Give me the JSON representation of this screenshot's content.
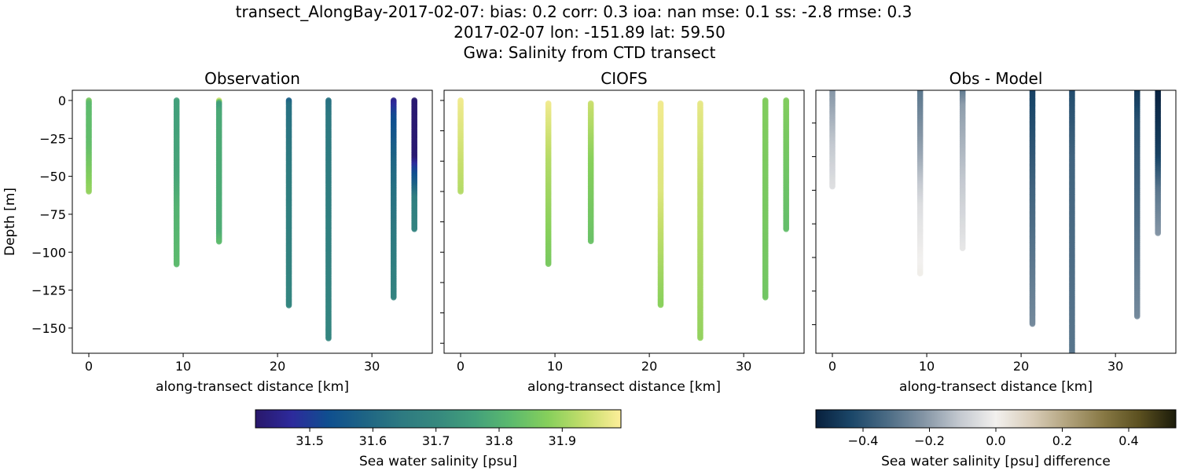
{
  "figure": {
    "title_lines": [
      "transect_AlongBay-2017-02-07: bias: 0.2  corr: 0.3  ioa: nan  mse: 0.1  ss: -2.8  rmse: 0.3",
      "2017-02-07 lon: -151.89 lat: 59.50",
      "Gwa: Salinity from CTD transect"
    ]
  },
  "chart_data": [
    {
      "type": "scatter",
      "title": "Observation",
      "xlabel": "along-transect distance [km]",
      "ylabel": "Depth [m]",
      "xlim": [
        -1.75,
        36.4
      ],
      "ylim": [
        -166.6,
        6.7
      ],
      "xticks": [
        0,
        10,
        20,
        30
      ],
      "yticks": [
        0,
        -25,
        -50,
        -75,
        -100,
        -125,
        -150
      ],
      "ytick_labels": [
        "0",
        "−25",
        "−50",
        "−75",
        "−100",
        "−125",
        "−150"
      ],
      "colormap": "haline",
      "casts": [
        {
          "distance_km": 0,
          "profile": [
            [
              0,
              31.86
            ],
            [
              2,
              31.82
            ],
            [
              30,
              31.83
            ],
            [
              60,
              31.89
            ]
          ]
        },
        {
          "distance_km": 9.3,
          "profile": [
            [
              0,
              31.76
            ],
            [
              50,
              31.77
            ],
            [
              70,
              31.8
            ],
            [
              108,
              31.82
            ]
          ]
        },
        {
          "distance_km": 13.8,
          "profile": [
            [
              0,
              31.95
            ],
            [
              2,
              31.75
            ],
            [
              8,
              31.78
            ],
            [
              88,
              31.79
            ],
            [
              93,
              31.82
            ]
          ]
        },
        {
          "distance_km": 21.2,
          "profile": [
            [
              0,
              31.57
            ],
            [
              3,
              31.62
            ],
            [
              60,
              31.66
            ],
            [
              135,
              31.69
            ]
          ]
        },
        {
          "distance_km": 25.4,
          "profile": [
            [
              0,
              31.62
            ],
            [
              10,
              31.64
            ],
            [
              157,
              31.69
            ]
          ]
        },
        {
          "distance_km": 32.3,
          "profile": [
            [
              0,
              31.45
            ],
            [
              10,
              31.52
            ],
            [
              40,
              31.59
            ],
            [
              60,
              31.62
            ],
            [
              130,
              31.68
            ]
          ]
        },
        {
          "distance_km": 34.5,
          "profile": [
            [
              0,
              31.42
            ],
            [
              38,
              31.42
            ],
            [
              45,
              31.5
            ],
            [
              55,
              31.57
            ],
            [
              65,
              31.66
            ],
            [
              85,
              31.68
            ]
          ]
        }
      ]
    },
    {
      "type": "scatter",
      "title": "CIOFS",
      "xlabel": "along-transect distance [km]",
      "xlim": [
        -1.75,
        36.4
      ],
      "ylim": [
        -166.6,
        6.7
      ],
      "xticks": [
        0,
        10,
        20,
        30
      ],
      "yticks": [
        0,
        -20,
        -40,
        -60,
        -80,
        -100,
        -120,
        -140,
        -160
      ],
      "colormap": "haline",
      "casts": [
        {
          "distance_km": 0,
          "profile": [
            [
              0,
              31.98
            ],
            [
              60,
              31.92
            ]
          ]
        },
        {
          "distance_km": 9.3,
          "profile": [
            [
              2,
              31.98
            ],
            [
              40,
              31.92
            ],
            [
              108,
              31.86
            ]
          ]
        },
        {
          "distance_km": 13.8,
          "profile": [
            [
              2,
              31.94
            ],
            [
              40,
              31.88
            ],
            [
              93,
              31.84
            ]
          ]
        },
        {
          "distance_km": 21.2,
          "profile": [
            [
              2,
              31.98
            ],
            [
              60,
              31.96
            ],
            [
              135,
              31.88
            ]
          ]
        },
        {
          "distance_km": 25.4,
          "profile": [
            [
              2,
              31.97
            ],
            [
              60,
              31.93
            ],
            [
              157,
              31.89
            ]
          ]
        },
        {
          "distance_km": 32.3,
          "profile": [
            [
              0,
              31.87
            ],
            [
              130,
              31.85
            ]
          ]
        },
        {
          "distance_km": 34.5,
          "profile": [
            [
              0,
              31.87
            ],
            [
              85,
              31.83
            ]
          ]
        }
      ]
    },
    {
      "type": "scatter",
      "title": "Obs - Model",
      "xlabel": "along-transect distance [km]",
      "xlim": [
        -1.75,
        36.4
      ],
      "ylim": [
        -157,
        -0.5
      ],
      "xticks": [
        0,
        10,
        20,
        30
      ],
      "yticks": [
        -20,
        -40,
        -60,
        -80,
        -100,
        -120,
        -140
      ],
      "colormap": "diff",
      "casts": [
        {
          "distance_km": 0,
          "profile": [
            [
              0,
              -0.22
            ],
            [
              30,
              -0.12
            ],
            [
              58,
              -0.05
            ]
          ]
        },
        {
          "distance_km": 9.3,
          "profile": [
            [
              0,
              -0.3
            ],
            [
              40,
              -0.18
            ],
            [
              70,
              -0.05
            ],
            [
              110,
              0.01
            ]
          ]
        },
        {
          "distance_km": 13.8,
          "profile": [
            [
              0,
              -0.3
            ],
            [
              10,
              -0.2
            ],
            [
              60,
              -0.1
            ],
            [
              95,
              -0.03
            ]
          ]
        },
        {
          "distance_km": 21.2,
          "profile": [
            [
              0,
              -0.45
            ],
            [
              60,
              -0.35
            ],
            [
              140,
              -0.25
            ]
          ]
        },
        {
          "distance_km": 25.4,
          "profile": [
            [
              0,
              -0.42
            ],
            [
              40,
              -0.35
            ],
            [
              157,
              -0.3
            ]
          ]
        },
        {
          "distance_km": 32.3,
          "profile": [
            [
              0,
              -0.48
            ],
            [
              20,
              -0.4
            ],
            [
              80,
              -0.32
            ],
            [
              135,
              -0.25
            ]
          ]
        },
        {
          "distance_km": 34.5,
          "profile": [
            [
              0,
              -0.54
            ],
            [
              40,
              -0.45
            ],
            [
              60,
              -0.3
            ],
            [
              86,
              -0.22
            ]
          ]
        }
      ]
    }
  ],
  "colorbars": [
    {
      "label": "Sea water salinity [psu]",
      "range": [
        31.414,
        31.993
      ],
      "ticks": [
        31.5,
        31.6,
        31.7,
        31.8,
        31.9
      ],
      "tick_labels": [
        "31.5",
        "31.6",
        "31.7",
        "31.8",
        "31.9"
      ],
      "colormap": "haline"
    },
    {
      "label": "Sea water salinity [psu] difference",
      "range": [
        -0.542,
        0.542
      ],
      "ticks": [
        -0.4,
        -0.2,
        0,
        0.2,
        0.4
      ],
      "tick_labels": [
        "−0.4",
        "−0.2",
        "0.0",
        "0.2",
        "0.4"
      ],
      "colormap": "diff"
    }
  ],
  "colormaps": {
    "haline": [
      "#29186b",
      "#2d2a9c",
      "#0f4f8f",
      "#1e6484",
      "#2e7a81",
      "#36897e",
      "#43a07b",
      "#5cba6e",
      "#86cf5b",
      "#c5de6c",
      "#fdee99"
    ],
    "diff": [
      "#08203d",
      "#1b4769",
      "#4c6c85",
      "#8495a5",
      "#c4c9d0",
      "#f2f0ee",
      "#d9cdb9",
      "#b1a27c",
      "#877844",
      "#5a4f1f",
      "#1b1b0a"
    ]
  }
}
